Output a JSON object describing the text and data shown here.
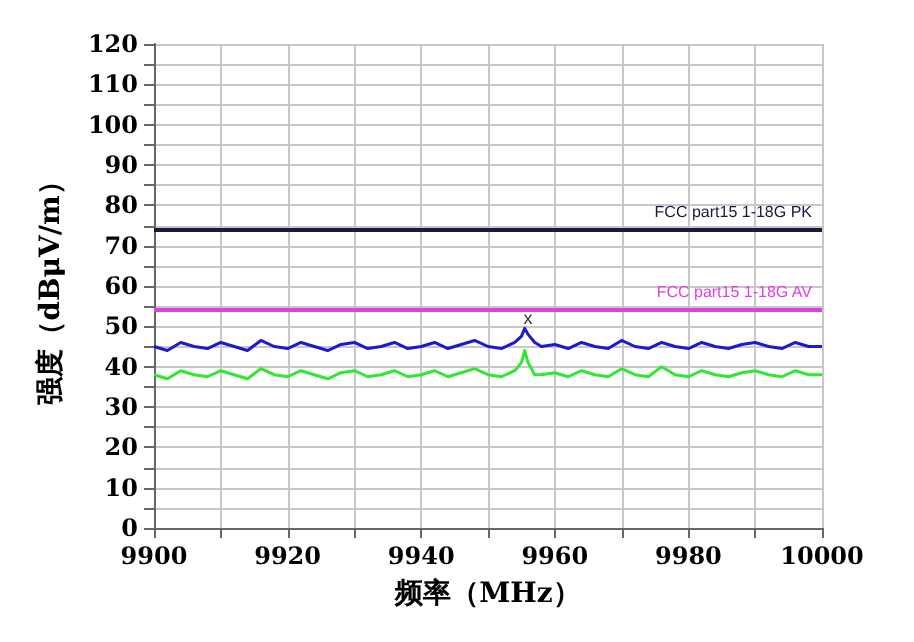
{
  "chart_data": {
    "type": "line",
    "xlabel": "频率（MHz）",
    "ylabel": "强度（dBμV/m）",
    "xlim": [
      9900,
      10000
    ],
    "ylim": [
      0,
      120
    ],
    "xticks": [
      9900,
      {
        "value": 9910,
        "label": null
      },
      9920,
      {
        "value": 9930,
        "label": null
      },
      9940,
      {
        "value": 9950,
        "label": null
      },
      9960,
      {
        "value": 9970,
        "label": null
      },
      9980,
      {
        "value": 9990,
        "label": null
      },
      10000
    ],
    "yticks": [
      0,
      {
        "value": 5,
        "label": null
      },
      10,
      {
        "value": 15,
        "label": null
      },
      20,
      {
        "value": 25,
        "label": null
      },
      30,
      {
        "value": 35,
        "label": null
      },
      40,
      {
        "value": 45,
        "label": null
      },
      50,
      {
        "value": 55,
        "label": null
      },
      60,
      {
        "value": 65,
        "label": null
      },
      70,
      {
        "value": 75,
        "label": null
      },
      80,
      {
        "value": 85,
        "label": null
      },
      90,
      {
        "value": 95,
        "label": null
      },
      100,
      {
        "value": 105,
        "label": null
      },
      110,
      {
        "value": 115,
        "label": null
      },
      120
    ],
    "grid": true,
    "marker": "none",
    "line_style": "solid",
    "x": [
      9900,
      9902,
      9904,
      9906,
      9908,
      9910,
      9912,
      9914,
      9916,
      9918,
      9920,
      9922,
      9924,
      9926,
      9928,
      9930,
      9932,
      9934,
      9936,
      9938,
      9940,
      9942,
      9944,
      9946,
      9948,
      9950,
      9952,
      9954,
      9955,
      9955.5,
      9956,
      9957,
      9958,
      9960,
      9962,
      9964,
      9966,
      9968,
      9970,
      9972,
      9974,
      9976,
      9978,
      9980,
      9982,
      9984,
      9986,
      9988,
      9990,
      9992,
      9994,
      9996,
      9998,
      10000
    ],
    "series": [
      {
        "color": "#1a1ad0",
        "values": [
          45,
          44,
          46,
          45,
          44.5,
          46,
          45,
          44,
          46.5,
          45,
          44.5,
          46,
          45,
          44,
          45.5,
          46,
          44.5,
          45,
          46,
          44.5,
          45,
          46,
          44.5,
          45.5,
          46.5,
          45,
          44.5,
          46,
          47.5,
          49.5,
          48,
          46,
          45,
          45.5,
          44.5,
          46,
          45,
          44.5,
          46.5,
          45,
          44.5,
          46,
          45,
          44.5,
          46,
          45,
          44.5,
          45.5,
          46,
          45,
          44.5,
          46,
          45,
          45
        ]
      },
      {
        "color": "#33e633",
        "values": [
          38,
          37,
          39,
          38,
          37.5,
          39,
          38,
          37,
          39.5,
          38,
          37.5,
          39,
          38,
          37,
          38.5,
          39,
          37.5,
          38,
          39,
          37.5,
          38,
          39,
          37.5,
          38.5,
          39.5,
          38,
          37.5,
          39,
          41,
          44,
          41,
          38,
          38,
          38.5,
          37.5,
          39,
          38,
          37.5,
          39.5,
          38,
          37.5,
          40,
          38,
          37.5,
          39,
          38,
          37.5,
          38.5,
          39,
          38,
          37.5,
          39,
          38,
          38
        ]
      }
    ],
    "ref_lines": [
      {
        "axis": "y",
        "value": 74,
        "label": "FCC part15 1-18G PK",
        "color": "#1a1a40"
      },
      {
        "axis": "y",
        "value": 54,
        "label": "FCC part15 1-18G AV",
        "color": "#e040e0"
      }
    ],
    "annotations": [
      {
        "text": "x",
        "x": 9956,
        "y": 52
      }
    ]
  }
}
